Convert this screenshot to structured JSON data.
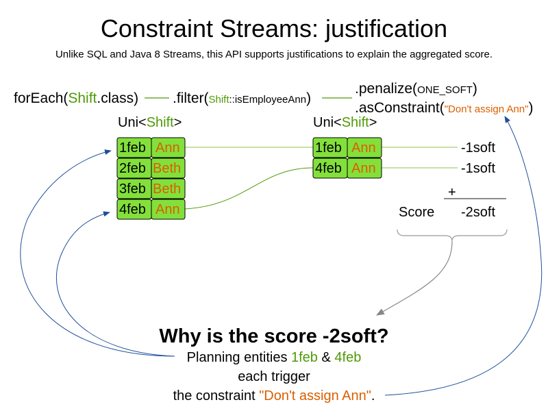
{
  "title": "Constraint Streams: justification",
  "subtitle": "Unlike SQL and Java 8 Streams, this API supports justifications to explain the aggregated score.",
  "code": {
    "forEach_pre": "forEach(",
    "forEach_class": "Shift",
    "forEach_post": ".class)",
    "filter_pre": ".filter(",
    "filter_class": "Shift",
    "filter_method": "::isEmployeeAnn",
    "filter_post": ")",
    "penalize_pre": ".penalize(",
    "penalize_arg": "ONE_SOFT",
    "penalize_post": ")",
    "constraint_pre": ".asConstraint(",
    "constraint_name": "\"Don't assign Ann\"",
    "constraint_post": ")"
  },
  "uni_left": {
    "pre": "Uni<",
    "type": "Shift",
    "post": ">"
  },
  "uni_right": {
    "pre": "Uni<",
    "type": "Shift",
    "post": ">"
  },
  "left_tuples": [
    {
      "date": "1feb",
      "employee": "Ann"
    },
    {
      "date": "2feb",
      "employee": "Beth"
    },
    {
      "date": "3feb",
      "employee": "Beth"
    },
    {
      "date": "4feb",
      "employee": "Ann"
    }
  ],
  "right_tuples": [
    {
      "date": "1feb",
      "employee": "Ann",
      "penalty": "-1soft"
    },
    {
      "date": "4feb",
      "employee": "Ann",
      "penalty": "-1soft"
    }
  ],
  "sum": {
    "plus": "+",
    "label": "Score",
    "total": "-2soft"
  },
  "question": "Why is the score -2soft?",
  "answer": {
    "l1_pre": "Planning entities ",
    "l1_e1": "1feb",
    "l1_mid": " & ",
    "l1_e2": "4feb",
    "l2": "each trigger",
    "l3_pre": "the constraint ",
    "l3_name": "\"Don't assign Ann\"",
    "l3_post": "."
  },
  "colors": {
    "green": "#4e9a06",
    "orange": "#d95f00",
    "cell": "#83e03b",
    "arrow": "#1f4e9a"
  }
}
